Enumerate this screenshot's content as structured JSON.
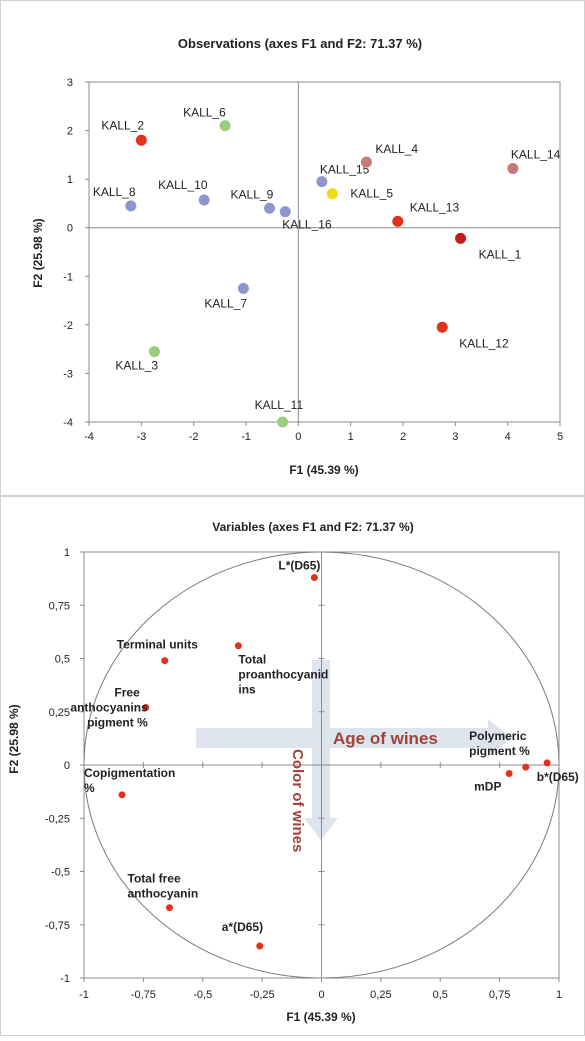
{
  "chart_data": [
    {
      "type": "scatter",
      "title": "Observations (axes F1 and F2: 71.37 %)",
      "xlabel": "F1 (45.39 %)",
      "ylabel": "F2 (25.98 %)",
      "xlim": [
        -4,
        5
      ],
      "ylim": [
        -4,
        3
      ],
      "x_ticks": [
        "-4",
        "-3",
        "-2",
        "-1",
        "0",
        "1",
        "2",
        "3",
        "4",
        "5"
      ],
      "y_ticks": [
        "-4",
        "-3",
        "-2",
        "-1",
        "0",
        "1",
        "2",
        "3"
      ],
      "grid": false,
      "colors": {
        "blue": "#8e96cf",
        "green": "#9bcc80",
        "red": "#e2321f",
        "pink": "#c97878",
        "yellow": "#f2d90a",
        "darkred": "#c31d1a"
      },
      "points": [
        {
          "label": "KALL_2",
          "x": -3.0,
          "y": 1.8,
          "color": "red"
        },
        {
          "label": "KALL_6",
          "x": -1.4,
          "y": 2.1,
          "color": "green"
        },
        {
          "label": "KALL_8",
          "x": -3.2,
          "y": 0.45,
          "color": "blue"
        },
        {
          "label": "KALL_10",
          "x": -1.8,
          "y": 0.57,
          "color": "blue"
        },
        {
          "label": "KALL_9",
          "x": -0.55,
          "y": 0.4,
          "color": "blue"
        },
        {
          "label": "KALL_16",
          "x": -0.25,
          "y": 0.33,
          "color": "blue"
        },
        {
          "label": "KALL_15",
          "x": 0.45,
          "y": 0.95,
          "color": "blue"
        },
        {
          "label": "KALL_5",
          "x": 0.65,
          "y": 0.7,
          "color": "yellow"
        },
        {
          "label": "KALL_4",
          "x": 1.3,
          "y": 1.35,
          "color": "pink"
        },
        {
          "label": "KALL_14",
          "x": 4.1,
          "y": 1.22,
          "color": "pink"
        },
        {
          "label": "KALL_13",
          "x": 1.9,
          "y": 0.13,
          "color": "red"
        },
        {
          "label": "KALL_1",
          "x": 3.1,
          "y": -0.22,
          "color": "darkred"
        },
        {
          "label": "KALL_7",
          "x": -1.05,
          "y": -1.25,
          "color": "blue"
        },
        {
          "label": "KALL_12",
          "x": 2.75,
          "y": -2.05,
          "color": "red"
        },
        {
          "label": "KALL_3",
          "x": -2.75,
          "y": -2.55,
          "color": "green"
        },
        {
          "label": "KALL_11",
          "x": -0.3,
          "y": -4.0,
          "color": "green"
        }
      ]
    },
    {
      "type": "scatter",
      "title": "Variables (axes F1 and F2: 71.37 %)",
      "xlabel": "F1 (45.39 %)",
      "ylabel": "F2 (25.98 %)",
      "xlim": [
        -1,
        1
      ],
      "ylim": [
        -1,
        1
      ],
      "x_ticks": [
        "-1",
        "-0,75",
        "-0,5",
        "-0,25",
        "0",
        "0,25",
        "0,5",
        "0,75",
        "1"
      ],
      "y_ticks": [
        "-1",
        "-0,75",
        "-0,5",
        "-0,25",
        "0",
        "0,25",
        "0,5",
        "0,75",
        "1"
      ],
      "grid": false,
      "point_color": "#e2321f",
      "circle": "unit correlation circle",
      "annotations": [
        "Age of wines",
        "Color of wines"
      ],
      "arrow_color": "#dde4ee",
      "annotation_color": "#a3423a",
      "points": [
        {
          "label": "L*(D65)",
          "x": -0.03,
          "y": 0.88
        },
        {
          "label": "Terminal units",
          "x": -0.66,
          "y": 0.49
        },
        {
          "label": "Total proanthocyanid ins",
          "x": -0.35,
          "y": 0.56
        },
        {
          "label": "Free anthocyanins pigment %",
          "x": -0.74,
          "y": 0.27
        },
        {
          "label": "Copigmentation %",
          "x": -0.84,
          "y": -0.14
        },
        {
          "label": "Total free anthocyanin",
          "x": -0.64,
          "y": -0.67
        },
        {
          "label": "a*(D65)",
          "x": -0.26,
          "y": -0.85
        },
        {
          "label": "Polymeric pigment  %",
          "x": 0.95,
          "y": 0.01
        },
        {
          "label": "mDP",
          "x": 0.79,
          "y": -0.04
        },
        {
          "label": "b*(D65)",
          "x": 0.86,
          "y": -0.01
        }
      ]
    }
  ]
}
